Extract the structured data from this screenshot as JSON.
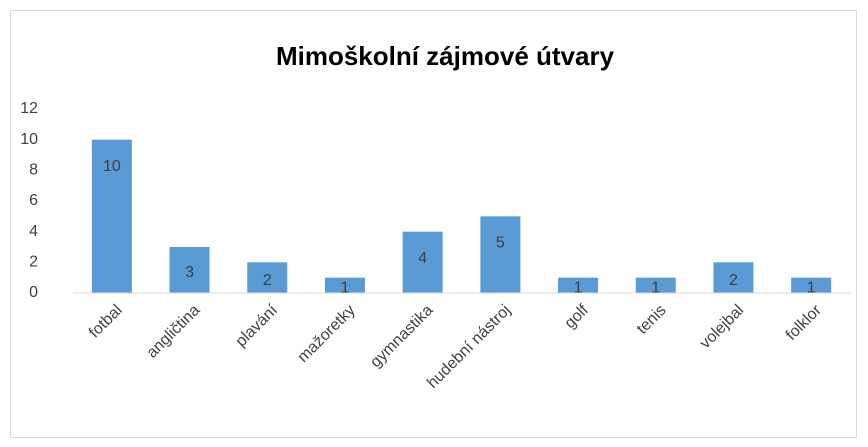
{
  "chart_data": {
    "type": "bar",
    "title": "Mimoškolní zájmové útvary",
    "categories": [
      "fotbal",
      "angličtina",
      "plavání",
      "mažoretky",
      "gymnastika",
      "hudební nástroj",
      "golf",
      "tenis",
      "volejbal",
      "folklor"
    ],
    "values": [
      10,
      3,
      2,
      1,
      4,
      5,
      1,
      1,
      2,
      1
    ],
    "color": "#5b9bd5",
    "ylim": [
      0,
      12
    ],
    "yticks": [
      0,
      2,
      4,
      6,
      8,
      10,
      12
    ],
    "grid": false
  }
}
